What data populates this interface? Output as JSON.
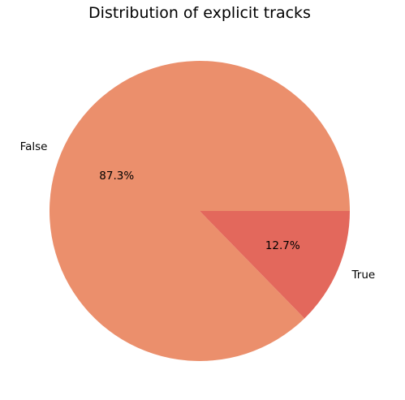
{
  "chart_data": {
    "type": "pie",
    "title": "Distribution of explicit tracks",
    "slices": [
      {
        "label": "False",
        "value": 87.3,
        "pct_label": "87.3%",
        "color": "#eb8f6c"
      },
      {
        "label": "True",
        "value": 12.7,
        "pct_label": "12.7%",
        "color": "#e3685c"
      }
    ],
    "start_angle_deg": 0,
    "direction": "counterclockwise",
    "legend": "none"
  }
}
